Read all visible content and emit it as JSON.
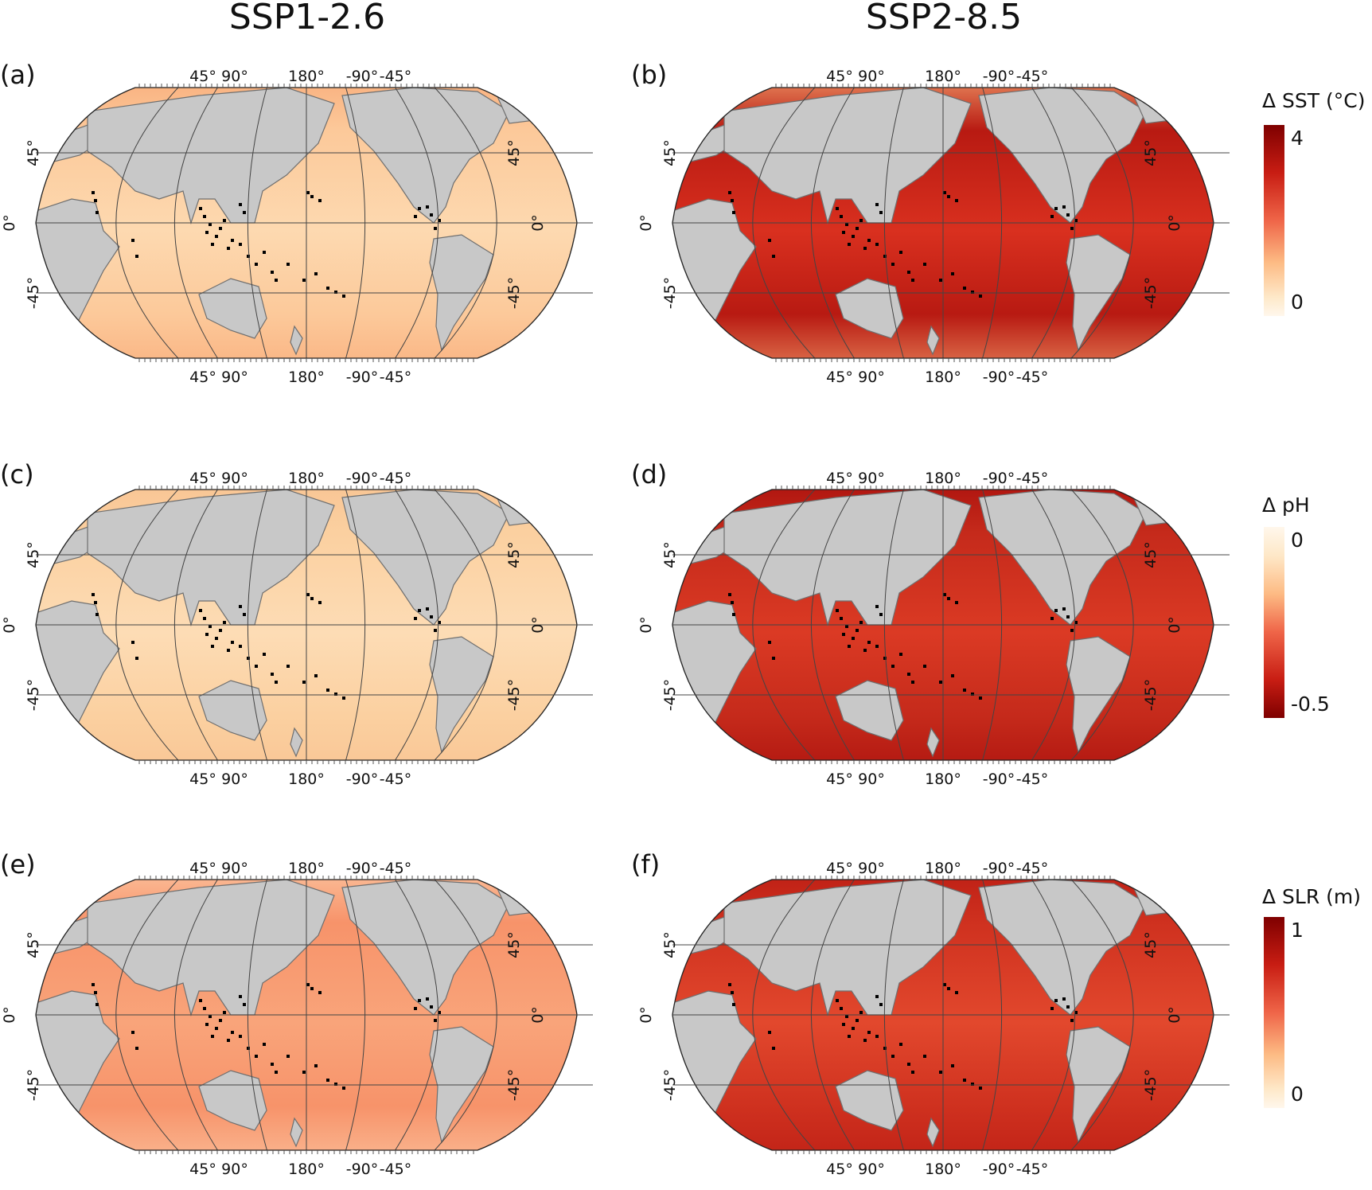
{
  "figure": {
    "columns": [
      {
        "title": "SSP1-2.6"
      },
      {
        "title": "SSP2-8.5"
      }
    ],
    "panels": [
      {
        "id": "a",
        "label": "(a)",
        "scenario": "SSP1-2.6",
        "variable": "Δ SST (°C)",
        "ocean_color": "#fdd9b0",
        "ocean_color2": "#fcc99a",
        "polar_color": "#f9a977"
      },
      {
        "id": "b",
        "label": "(b)",
        "scenario": "SSP2-8.5",
        "variable": "Δ SST (°C)",
        "ocean_color": "#d9301f",
        "ocean_color2": "#b81a12",
        "polar_color": "#f4a36f"
      },
      {
        "id": "c",
        "label": "(c)",
        "scenario": "SSP1-2.6",
        "variable": "Δ pH",
        "ocean_color": "#fddcb5",
        "ocean_color2": "#fbd0a0",
        "polar_color": "#f8c190"
      },
      {
        "id": "d",
        "label": "(d)",
        "scenario": "SSP2-8.5",
        "variable": "Δ pH",
        "ocean_color": "#db3a24",
        "ocean_color2": "#c52a1b",
        "polar_color": "#a70d0b"
      },
      {
        "id": "e",
        "label": "(e)",
        "scenario": "SSP1-2.6",
        "variable": "Δ SLR (m)",
        "ocean_color": "#f9a47a",
        "ocean_color2": "#f7936a",
        "polar_color": "#fcc9a5"
      },
      {
        "id": "f",
        "label": "(f)",
        "scenario": "SSP2-8.5",
        "variable": "Δ SLR (m)",
        "ocean_color": "#e2482d",
        "ocean_color2": "#cf311f",
        "polar_color": "#b91a12"
      }
    ],
    "lon_ticks": [
      "45°",
      "90°",
      "180°",
      "-90°",
      "-45°"
    ],
    "lat_ticks": [
      "45°",
      "0°",
      "-45°"
    ],
    "land_color": "#c8c8c8",
    "reef_color": "#000000"
  },
  "colorbars": [
    {
      "title": "Δ SST (°C)",
      "top_label": "4",
      "bottom_label": "0",
      "top_color": "#7f0000",
      "bottom_color": "#fff7ec"
    },
    {
      "title": "Δ pH",
      "top_label": "0",
      "bottom_label": "-0.5",
      "top_color": "#fff7ec",
      "bottom_color": "#7f0000"
    },
    {
      "title": "Δ SLR (m)",
      "top_label": "1",
      "bottom_label": "0",
      "top_color": "#7f0000",
      "bottom_color": "#fff7ec"
    }
  ],
  "chart_data": [
    {
      "type": "heatmap",
      "title": "(a) SSP1-2.6 Δ SST",
      "colorbar_label": "Δ SST (°C)",
      "range": [
        0,
        4
      ],
      "typical_value": 1.0,
      "projection": "Robinson (Pacific-centred, 180°)",
      "x_ticks": [
        "45°",
        "90°",
        "180°",
        "-90°",
        "-45°"
      ],
      "y_ticks": [
        "45°",
        "0°",
        "-45°"
      ]
    },
    {
      "type": "heatmap",
      "title": "(b) SSP2-8.5 Δ SST",
      "colorbar_label": "Δ SST (°C)",
      "range": [
        0,
        4
      ],
      "typical_value": 3.0,
      "projection": "Robinson (Pacific-centred, 180°)",
      "x_ticks": [
        "45°",
        "90°",
        "180°",
        "-90°",
        "-45°"
      ],
      "y_ticks": [
        "45°",
        "0°",
        "-45°"
      ]
    },
    {
      "type": "heatmap",
      "title": "(c) SSP1-2.6 Δ pH",
      "colorbar_label": "Δ pH",
      "range": [
        -0.5,
        0
      ],
      "typical_value": -0.05,
      "projection": "Robinson (Pacific-centred, 180°)",
      "x_ticks": [
        "45°",
        "90°",
        "180°",
        "-90°",
        "-45°"
      ],
      "y_ticks": [
        "45°",
        "0°",
        "-45°"
      ]
    },
    {
      "type": "heatmap",
      "title": "(d) SSP2-8.5 Δ pH",
      "colorbar_label": "Δ pH",
      "range": [
        -0.5,
        0
      ],
      "typical_value": -0.38,
      "projection": "Robinson (Pacific-centred, 180°)",
      "x_ticks": [
        "45°",
        "90°",
        "180°",
        "-90°",
        "-45°"
      ],
      "y_ticks": [
        "45°",
        "0°",
        "-45°"
      ]
    },
    {
      "type": "heatmap",
      "title": "(e) SSP1-2.6 Δ SLR",
      "colorbar_label": "Δ SLR (m)",
      "range": [
        0,
        1
      ],
      "typical_value": 0.45,
      "projection": "Robinson (Pacific-centred, 180°)",
      "x_ticks": [
        "45°",
        "90°",
        "180°",
        "-90°",
        "-45°"
      ],
      "y_ticks": [
        "45°",
        "0°",
        "-45°"
      ]
    },
    {
      "type": "heatmap",
      "title": "(f) SSP2-8.5 Δ SLR",
      "colorbar_label": "Δ SLR (m)",
      "range": [
        0,
        1
      ],
      "typical_value": 0.75,
      "projection": "Robinson (Pacific-centred, 180°)",
      "x_ticks": [
        "45°",
        "90°",
        "180°",
        "-90°",
        "-45°"
      ],
      "y_ticks": [
        "45°",
        "0°",
        "-45°"
      ]
    }
  ]
}
